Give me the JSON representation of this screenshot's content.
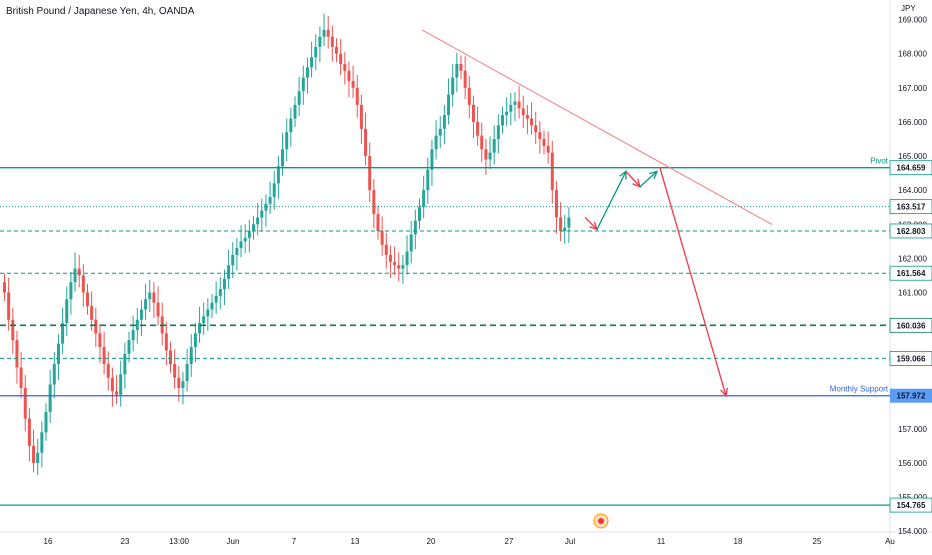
{
  "title": "British Pound / Japanese Yen, 4h, OANDA",
  "currency": "JPY",
  "colors": {
    "up": "#26a69a",
    "down": "#ef5350",
    "pivot_line": "#089981",
    "level_line": "#089981",
    "support_line": "#2962ff",
    "trendline": "#f77c80",
    "projection_up": "#089981",
    "projection_down": "#f23645",
    "axis_text": "#131722",
    "label_text": "#131722",
    "support_label_bg": "#5b9cf6"
  },
  "chart_data": {
    "type": "candlestick",
    "symbol": "GBPJPY",
    "timeframe": "4h",
    "ylim": [
      153.8,
      169.4
    ],
    "y_ticks": [
      "154.000",
      "155.000",
      "156.000",
      "157.000",
      "158.000",
      "159.000",
      "160.000",
      "161.000",
      "162.000",
      "163.000",
      "164.000",
      "165.000",
      "166.000",
      "167.000",
      "168.000",
      "169.000"
    ],
    "x_ticks": [
      "16",
      "23",
      "13:00",
      "Jun",
      "7",
      "13",
      "20",
      "27",
      "Jul",
      "11",
      "18",
      "25",
      "Au"
    ],
    "candles_close": [
      161.0,
      160.2,
      159.6,
      158.8,
      158.2,
      157.3,
      156.5,
      156.0,
      156.3,
      156.9,
      157.5,
      158.3,
      158.9,
      159.5,
      160.1,
      160.8,
      161.3,
      161.7,
      161.5,
      161.0,
      160.6,
      160.2,
      159.8,
      159.4,
      158.9,
      158.5,
      158.1,
      158.0,
      158.6,
      159.2,
      159.6,
      159.9,
      160.2,
      160.5,
      160.8,
      161.0,
      160.7,
      160.3,
      159.8,
      159.3,
      158.9,
      158.5,
      158.2,
      158.4,
      158.9,
      159.4,
      159.8,
      160.1,
      160.3,
      160.5,
      160.7,
      160.9,
      161.1,
      161.4,
      161.8,
      162.1,
      162.3,
      162.5,
      162.6,
      162.8,
      163.0,
      163.2,
      163.4,
      163.6,
      163.8,
      164.2,
      164.7,
      165.2,
      165.7,
      166.1,
      166.5,
      166.9,
      167.3,
      167.6,
      167.9,
      168.2,
      168.5,
      168.7,
      168.5,
      168.2,
      168.0,
      167.7,
      167.5,
      167.2,
      167.0,
      166.5,
      165.8,
      165.0,
      164.0,
      163.3,
      162.8,
      162.4,
      162.1,
      161.9,
      161.8,
      161.7,
      161.8,
      162.2,
      162.7,
      163.1,
      163.5,
      164.0,
      164.6,
      165.2,
      165.6,
      165.8,
      166.2,
      166.8,
      167.3,
      167.7,
      167.5,
      167.0,
      166.5,
      166.0,
      165.6,
      165.2,
      164.9,
      165.1,
      165.5,
      165.9,
      166.2,
      166.3,
      166.5,
      166.6,
      166.4,
      166.2,
      166.1,
      165.9,
      165.7,
      165.5,
      165.3,
      165.1,
      164.0,
      163.2,
      162.8,
      162.9,
      163.2
    ],
    "levels": [
      {
        "value": "164.659",
        "label": "Pivot",
        "style": "solid"
      },
      {
        "value": "163.517",
        "label": "",
        "style": "dotted"
      },
      {
        "value": "162.803",
        "label": "",
        "style": "dashed"
      },
      {
        "value": "161.564",
        "label": "",
        "style": "dashed"
      },
      {
        "value": "160.036",
        "label": "",
        "style": "dashed-bold"
      },
      {
        "value": "159.066",
        "label": "",
        "style": "dashed"
      },
      {
        "value": "157.972",
        "label": "Monthly Support",
        "style": "support"
      },
      {
        "value": "154.765",
        "label": "",
        "style": "solid"
      }
    ],
    "annotations": {
      "trendline": {
        "from": [
          0.455,
          0.08
        ],
        "to": [
          0.83,
          0.41
        ]
      },
      "projection_path": "zigzag up to pivot, then drop to monthly support"
    }
  }
}
